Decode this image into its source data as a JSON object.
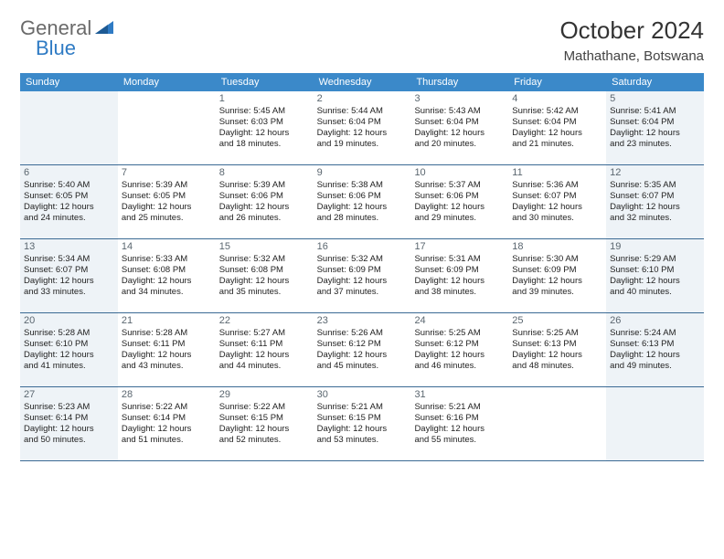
{
  "logo": {
    "general": "General",
    "blue": "Blue"
  },
  "title": "October 2024",
  "location": "Mathathane, Botswana",
  "colors": {
    "header_bg": "#3b89c9",
    "header_text": "#ffffff",
    "shaded_bg": "#eef3f7",
    "border": "#3b6a94",
    "logo_gray": "#6a6a6a",
    "logo_blue": "#2f7bc4"
  },
  "days_of_week": [
    "Sunday",
    "Monday",
    "Tuesday",
    "Wednesday",
    "Thursday",
    "Friday",
    "Saturday"
  ],
  "weeks": [
    [
      {
        "shaded": true
      },
      {},
      {
        "num": "1",
        "sunrise": "Sunrise: 5:45 AM",
        "sunset": "Sunset: 6:03 PM",
        "day1": "Daylight: 12 hours",
        "day2": "and 18 minutes."
      },
      {
        "num": "2",
        "sunrise": "Sunrise: 5:44 AM",
        "sunset": "Sunset: 6:04 PM",
        "day1": "Daylight: 12 hours",
        "day2": "and 19 minutes."
      },
      {
        "num": "3",
        "sunrise": "Sunrise: 5:43 AM",
        "sunset": "Sunset: 6:04 PM",
        "day1": "Daylight: 12 hours",
        "day2": "and 20 minutes."
      },
      {
        "num": "4",
        "sunrise": "Sunrise: 5:42 AM",
        "sunset": "Sunset: 6:04 PM",
        "day1": "Daylight: 12 hours",
        "day2": "and 21 minutes."
      },
      {
        "num": "5",
        "shaded": true,
        "sunrise": "Sunrise: 5:41 AM",
        "sunset": "Sunset: 6:04 PM",
        "day1": "Daylight: 12 hours",
        "day2": "and 23 minutes."
      }
    ],
    [
      {
        "num": "6",
        "shaded": true,
        "sunrise": "Sunrise: 5:40 AM",
        "sunset": "Sunset: 6:05 PM",
        "day1": "Daylight: 12 hours",
        "day2": "and 24 minutes."
      },
      {
        "num": "7",
        "sunrise": "Sunrise: 5:39 AM",
        "sunset": "Sunset: 6:05 PM",
        "day1": "Daylight: 12 hours",
        "day2": "and 25 minutes."
      },
      {
        "num": "8",
        "sunrise": "Sunrise: 5:39 AM",
        "sunset": "Sunset: 6:06 PM",
        "day1": "Daylight: 12 hours",
        "day2": "and 26 minutes."
      },
      {
        "num": "9",
        "sunrise": "Sunrise: 5:38 AM",
        "sunset": "Sunset: 6:06 PM",
        "day1": "Daylight: 12 hours",
        "day2": "and 28 minutes."
      },
      {
        "num": "10",
        "sunrise": "Sunrise: 5:37 AM",
        "sunset": "Sunset: 6:06 PM",
        "day1": "Daylight: 12 hours",
        "day2": "and 29 minutes."
      },
      {
        "num": "11",
        "sunrise": "Sunrise: 5:36 AM",
        "sunset": "Sunset: 6:07 PM",
        "day1": "Daylight: 12 hours",
        "day2": "and 30 minutes."
      },
      {
        "num": "12",
        "shaded": true,
        "sunrise": "Sunrise: 5:35 AM",
        "sunset": "Sunset: 6:07 PM",
        "day1": "Daylight: 12 hours",
        "day2": "and 32 minutes."
      }
    ],
    [
      {
        "num": "13",
        "shaded": true,
        "sunrise": "Sunrise: 5:34 AM",
        "sunset": "Sunset: 6:07 PM",
        "day1": "Daylight: 12 hours",
        "day2": "and 33 minutes."
      },
      {
        "num": "14",
        "sunrise": "Sunrise: 5:33 AM",
        "sunset": "Sunset: 6:08 PM",
        "day1": "Daylight: 12 hours",
        "day2": "and 34 minutes."
      },
      {
        "num": "15",
        "sunrise": "Sunrise: 5:32 AM",
        "sunset": "Sunset: 6:08 PM",
        "day1": "Daylight: 12 hours",
        "day2": "and 35 minutes."
      },
      {
        "num": "16",
        "sunrise": "Sunrise: 5:32 AM",
        "sunset": "Sunset: 6:09 PM",
        "day1": "Daylight: 12 hours",
        "day2": "and 37 minutes."
      },
      {
        "num": "17",
        "sunrise": "Sunrise: 5:31 AM",
        "sunset": "Sunset: 6:09 PM",
        "day1": "Daylight: 12 hours",
        "day2": "and 38 minutes."
      },
      {
        "num": "18",
        "sunrise": "Sunrise: 5:30 AM",
        "sunset": "Sunset: 6:09 PM",
        "day1": "Daylight: 12 hours",
        "day2": "and 39 minutes."
      },
      {
        "num": "19",
        "shaded": true,
        "sunrise": "Sunrise: 5:29 AM",
        "sunset": "Sunset: 6:10 PM",
        "day1": "Daylight: 12 hours",
        "day2": "and 40 minutes."
      }
    ],
    [
      {
        "num": "20",
        "shaded": true,
        "sunrise": "Sunrise: 5:28 AM",
        "sunset": "Sunset: 6:10 PM",
        "day1": "Daylight: 12 hours",
        "day2": "and 41 minutes."
      },
      {
        "num": "21",
        "sunrise": "Sunrise: 5:28 AM",
        "sunset": "Sunset: 6:11 PM",
        "day1": "Daylight: 12 hours",
        "day2": "and 43 minutes."
      },
      {
        "num": "22",
        "sunrise": "Sunrise: 5:27 AM",
        "sunset": "Sunset: 6:11 PM",
        "day1": "Daylight: 12 hours",
        "day2": "and 44 minutes."
      },
      {
        "num": "23",
        "sunrise": "Sunrise: 5:26 AM",
        "sunset": "Sunset: 6:12 PM",
        "day1": "Daylight: 12 hours",
        "day2": "and 45 minutes."
      },
      {
        "num": "24",
        "sunrise": "Sunrise: 5:25 AM",
        "sunset": "Sunset: 6:12 PM",
        "day1": "Daylight: 12 hours",
        "day2": "and 46 minutes."
      },
      {
        "num": "25",
        "sunrise": "Sunrise: 5:25 AM",
        "sunset": "Sunset: 6:13 PM",
        "day1": "Daylight: 12 hours",
        "day2": "and 48 minutes."
      },
      {
        "num": "26",
        "shaded": true,
        "sunrise": "Sunrise: 5:24 AM",
        "sunset": "Sunset: 6:13 PM",
        "day1": "Daylight: 12 hours",
        "day2": "and 49 minutes."
      }
    ],
    [
      {
        "num": "27",
        "shaded": true,
        "sunrise": "Sunrise: 5:23 AM",
        "sunset": "Sunset: 6:14 PM",
        "day1": "Daylight: 12 hours",
        "day2": "and 50 minutes."
      },
      {
        "num": "28",
        "sunrise": "Sunrise: 5:22 AM",
        "sunset": "Sunset: 6:14 PM",
        "day1": "Daylight: 12 hours",
        "day2": "and 51 minutes."
      },
      {
        "num": "29",
        "sunrise": "Sunrise: 5:22 AM",
        "sunset": "Sunset: 6:15 PM",
        "day1": "Daylight: 12 hours",
        "day2": "and 52 minutes."
      },
      {
        "num": "30",
        "sunrise": "Sunrise: 5:21 AM",
        "sunset": "Sunset: 6:15 PM",
        "day1": "Daylight: 12 hours",
        "day2": "and 53 minutes."
      },
      {
        "num": "31",
        "sunrise": "Sunrise: 5:21 AM",
        "sunset": "Sunset: 6:16 PM",
        "day1": "Daylight: 12 hours",
        "day2": "and 55 minutes."
      },
      {},
      {
        "shaded": true
      }
    ]
  ]
}
